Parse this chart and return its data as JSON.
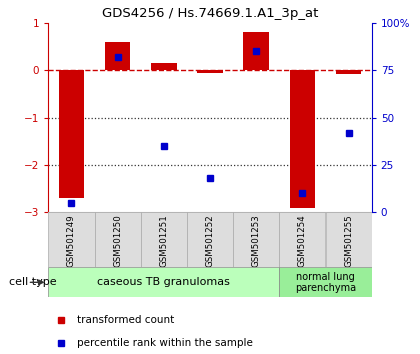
{
  "title": "GDS4256 / Hs.74669.1.A1_3p_at",
  "samples": [
    "GSM501249",
    "GSM501250",
    "GSM501251",
    "GSM501252",
    "GSM501253",
    "GSM501254",
    "GSM501255"
  ],
  "transformed_counts": [
    -2.7,
    0.6,
    0.15,
    -0.05,
    0.8,
    -2.9,
    -0.07
  ],
  "percentile_ranks": [
    5,
    82,
    35,
    18,
    85,
    10,
    42
  ],
  "ylim_left": [
    -3,
    1
  ],
  "ylim_right": [
    0,
    100
  ],
  "yticks_left": [
    -3,
    -2,
    -1,
    0,
    1
  ],
  "yticks_right": [
    0,
    25,
    50,
    75,
    100
  ],
  "yticklabels_right": [
    "0",
    "25",
    "50",
    "75",
    "100%"
  ],
  "red_color": "#cc0000",
  "blue_color": "#0000cc",
  "bar_width": 0.55,
  "dotted_line_color": "#333333",
  "dashed_line_color": "#cc0000",
  "legend_red_label": "transformed count",
  "legend_blue_label": "percentile rank within the sample",
  "cell_type_label": "cell type",
  "group1_label": "caseous TB granulomas",
  "group2_label": "normal lung\nparenchyma",
  "group1_color": "#bbffbb",
  "group2_color": "#99ee99",
  "group1_samples": 5,
  "group2_samples": 2,
  "sample_box_color": "#dddddd",
  "sample_box_edge": "#aaaaaa"
}
